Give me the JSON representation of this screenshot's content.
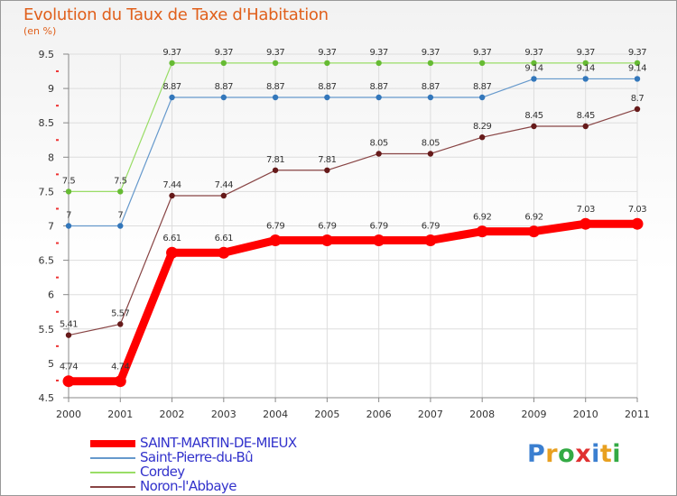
{
  "header": {
    "title": "Evolution du Taux de Taxe d'Habitation",
    "subtitle": "(en %)"
  },
  "logo": {
    "text": "Proxiti",
    "letters": [
      "P",
      "r",
      "o",
      "x",
      "i",
      "t",
      "i"
    ],
    "colors": [
      "#3b7fd0",
      "#e8a020",
      "#33aa44",
      "#e03030",
      "#3b7fd0",
      "#e8a020",
      "#33aa44"
    ]
  },
  "chart_data": {
    "type": "line",
    "title": "Evolution du Taux de Taxe d'Habitation",
    "ylabel": "(en %)",
    "xlabel": "",
    "ylim": [
      4.5,
      9.5
    ],
    "yticks": [
      4.5,
      5,
      5.5,
      6,
      6.5,
      7,
      7.5,
      8,
      8.5,
      9,
      9.5
    ],
    "ytick_labels": [
      "4.5",
      "5",
      "5.5",
      "6",
      "6.5",
      "7",
      "7.5",
      "8",
      "8.5",
      "9",
      "9.5"
    ],
    "x": [
      "2000",
      "2001",
      "2002",
      "2003",
      "2004",
      "2005",
      "2006",
      "2007",
      "2008",
      "2009",
      "2010",
      "2011"
    ],
    "legend_position": "bottom-left",
    "series": [
      {
        "name": "SAINT-MARTIN-DE-MIEUX",
        "color": "#ff0000",
        "point_color": "#ff0000",
        "thick": true,
        "values": [
          4.74,
          4.74,
          6.61,
          6.61,
          6.79,
          6.79,
          6.79,
          6.79,
          6.92,
          6.92,
          7.03,
          7.03
        ],
        "labels": [
          "4.74",
          "4.74",
          "6.61",
          "6.61",
          "6.79",
          "6.79",
          "6.79",
          "6.79",
          "6.92",
          "6.92",
          "7.03",
          "7.03"
        ]
      },
      {
        "name": "Saint-Pierre-du-Bû",
        "color": "#6699cc",
        "point_color": "#3377bb",
        "thick": false,
        "values": [
          7,
          7,
          8.87,
          8.87,
          8.87,
          8.87,
          8.87,
          8.87,
          8.87,
          9.14,
          9.14,
          9.14
        ],
        "labels": [
          "7",
          "7",
          "8.87",
          "8.87",
          "8.87",
          "8.87",
          "8.87",
          "8.87",
          "8.87",
          "9.14",
          "9.14",
          "9.14"
        ]
      },
      {
        "name": "Cordey",
        "color": "#99dd66",
        "point_color": "#66bb33",
        "thick": false,
        "values": [
          7.5,
          7.5,
          9.37,
          9.37,
          9.37,
          9.37,
          9.37,
          9.37,
          9.37,
          9.37,
          9.37,
          9.37
        ],
        "labels": [
          "7.5",
          "7.5",
          "9.37",
          "9.37",
          "9.37",
          "9.37",
          "9.37",
          "9.37",
          "9.37",
          "9.37",
          "9.37",
          "9.37"
        ]
      },
      {
        "name": "Noron-l'Abbaye",
        "color": "#884444",
        "point_color": "#661a1a",
        "thick": false,
        "values": [
          5.41,
          5.57,
          7.44,
          7.44,
          7.81,
          7.81,
          8.05,
          8.05,
          8.29,
          8.45,
          8.45,
          8.7
        ],
        "labels": [
          "5.41",
          "5.57",
          "7.44",
          "7.44",
          "7.81",
          "7.81",
          "8.05",
          "8.05",
          "8.29",
          "8.45",
          "8.45",
          "8.7"
        ]
      }
    ]
  }
}
